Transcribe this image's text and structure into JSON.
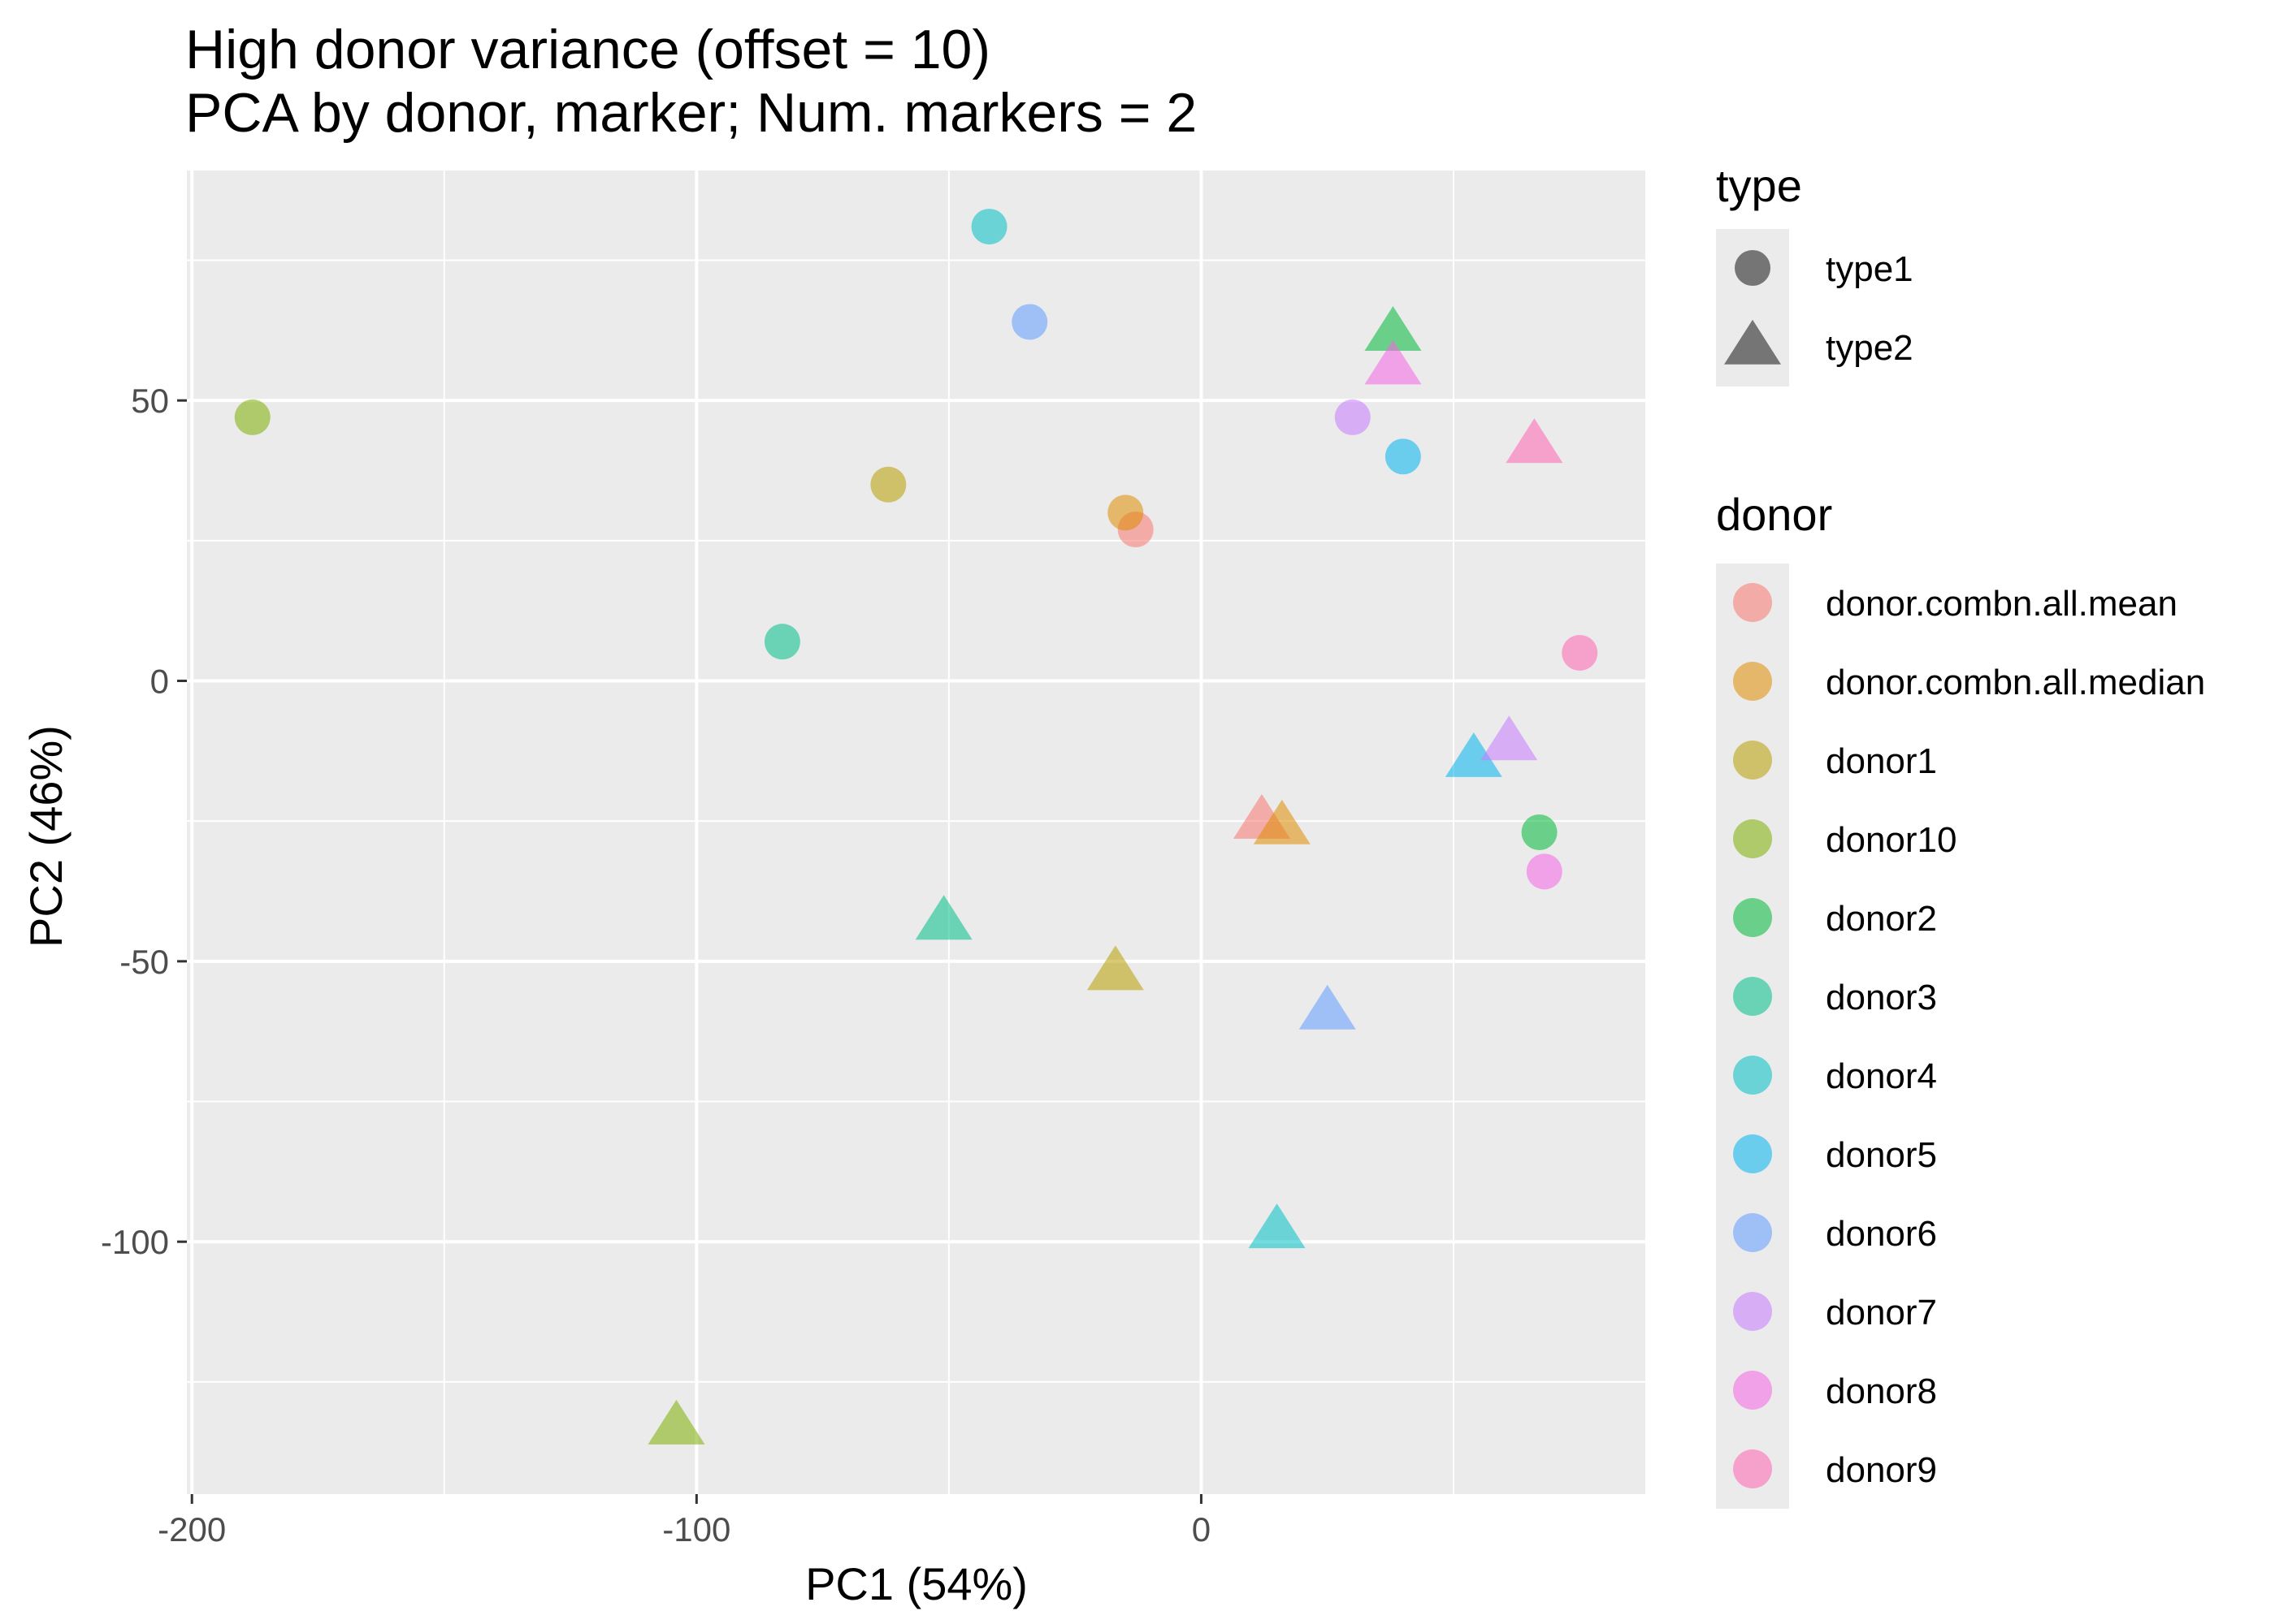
{
  "chart_data": {
    "type": "scatter",
    "title": "High donor variance (offset = 10)",
    "subtitle": "PCA by donor, marker; Num. markers = 2",
    "xlabel": "PC1 (54%)",
    "ylabel": "PC2 (46%)",
    "xlim": [
      -201,
      88
    ],
    "ylim": [
      -145,
      91
    ],
    "x_ticks": [
      -200,
      -100,
      0
    ],
    "x_tick_labels": [
      "-200",
      "-100",
      "0"
    ],
    "x_minor_ticks": [
      -150,
      -50,
      50
    ],
    "y_ticks": [
      -100,
      -50,
      0,
      50
    ],
    "y_tick_labels": [
      "-100",
      "-50",
      "0",
      "50"
    ],
    "y_minor_ticks": [
      -125,
      -75,
      -25,
      25,
      75
    ],
    "grid": true,
    "panel_background": "#ebebeb",
    "grid_color": "#ffffff",
    "point_opacity": 0.55,
    "legend_position": "right",
    "shape_legend": {
      "title": "type",
      "entries": [
        {
          "label": "type1",
          "shape": "circle"
        },
        {
          "label": "type2",
          "shape": "triangle"
        }
      ]
    },
    "color_legend": {
      "title": "donor",
      "entries": [
        {
          "label": "donor.combn.all.mean",
          "color": "#F8766D"
        },
        {
          "label": "donor.combn.all.median",
          "color": "#DE8C00"
        },
        {
          "label": "donor1",
          "color": "#B79F00"
        },
        {
          "label": "donor10",
          "color": "#7CAE00"
        },
        {
          "label": "donor2",
          "color": "#00BA38"
        },
        {
          "label": "donor3",
          "color": "#00C08B"
        },
        {
          "label": "donor4",
          "color": "#00BFC4"
        },
        {
          "label": "donor5",
          "color": "#00B4F0"
        },
        {
          "label": "donor6",
          "color": "#619CFF"
        },
        {
          "label": "donor7",
          "color": "#C77CFF"
        },
        {
          "label": "donor8",
          "color": "#F564E3"
        },
        {
          "label": "donor9",
          "color": "#FF64B0"
        }
      ]
    },
    "series": [
      {
        "donor": "donor.combn.all.mean",
        "type": "type1",
        "x": -13,
        "y": 27
      },
      {
        "donor": "donor.combn.all.mean",
        "type": "type2",
        "x": 12,
        "y": -25
      },
      {
        "donor": "donor.combn.all.median",
        "type": "type1",
        "x": -15,
        "y": 30
      },
      {
        "donor": "donor.combn.all.median",
        "type": "type2",
        "x": 16,
        "y": -26
      },
      {
        "donor": "donor1",
        "type": "type1",
        "x": -62,
        "y": 35
      },
      {
        "donor": "donor1",
        "type": "type2",
        "x": -17,
        "y": -52
      },
      {
        "donor": "donor10",
        "type": "type1",
        "x": -188,
        "y": 47
      },
      {
        "donor": "donor10",
        "type": "type2",
        "x": -104,
        "y": -133
      },
      {
        "donor": "donor2",
        "type": "type1",
        "x": 67,
        "y": -27
      },
      {
        "donor": "donor2",
        "type": "type2",
        "x": 38,
        "y": 62
      },
      {
        "donor": "donor3",
        "type": "type1",
        "x": -83,
        "y": 7
      },
      {
        "donor": "donor3",
        "type": "type2",
        "x": -51,
        "y": -43
      },
      {
        "donor": "donor4",
        "type": "type1",
        "x": -42,
        "y": 81
      },
      {
        "donor": "donor4",
        "type": "type2",
        "x": 15,
        "y": -98
      },
      {
        "donor": "donor5",
        "type": "type1",
        "x": 40,
        "y": 40
      },
      {
        "donor": "donor5",
        "type": "type2",
        "x": 54,
        "y": -14
      },
      {
        "donor": "donor6",
        "type": "type1",
        "x": -34,
        "y": 64
      },
      {
        "donor": "donor6",
        "type": "type2",
        "x": 25,
        "y": -59
      },
      {
        "donor": "donor7",
        "type": "type1",
        "x": 30,
        "y": 47
      },
      {
        "donor": "donor7",
        "type": "type2",
        "x": 61,
        "y": -11
      },
      {
        "donor": "donor8",
        "type": "type1",
        "x": 68,
        "y": -34
      },
      {
        "donor": "donor8",
        "type": "type2",
        "x": 38,
        "y": 56
      },
      {
        "donor": "donor9",
        "type": "type1",
        "x": 75,
        "y": 5
      },
      {
        "donor": "donor9",
        "type": "type2",
        "x": 66,
        "y": 42
      }
    ]
  }
}
